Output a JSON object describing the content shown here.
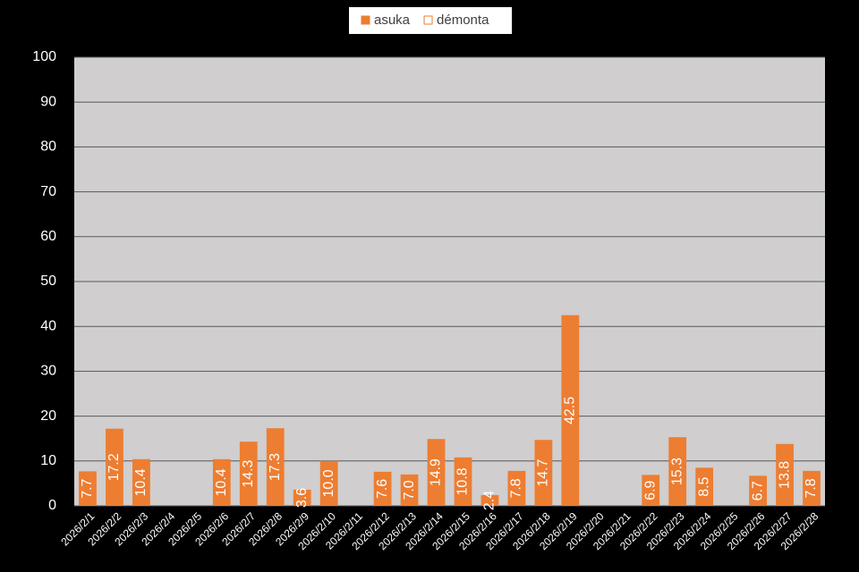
{
  "chart_data": {
    "type": "bar",
    "categories": [
      "2026/2/1",
      "2026/2/2",
      "2026/2/3",
      "2026/2/4",
      "2026/2/5",
      "2026/2/6",
      "2026/2/7",
      "2026/2/8",
      "2026/2/9",
      "2026/2/10",
      "2026/2/11",
      "2026/2/12",
      "2026/2/13",
      "2026/2/14",
      "2026/2/15",
      "2026/2/16",
      "2026/2/17",
      "2026/2/18",
      "2026/2/19",
      "2026/2/20",
      "2026/2/21",
      "2026/2/22",
      "2026/2/23",
      "2026/2/24",
      "2026/2/25",
      "2026/2/26",
      "2026/2/27",
      "2026/2/28"
    ],
    "series": [
      {
        "name": "asuka",
        "color": "#ed7d31",
        "fill": true,
        "values": [
          7.7,
          17.2,
          10.4,
          null,
          null,
          10.4,
          14.3,
          17.3,
          3.6,
          10.0,
          null,
          7.6,
          7.0,
          14.9,
          10.8,
          2.4,
          7.8,
          14.7,
          42.5,
          null,
          null,
          6.9,
          15.3,
          8.5,
          null,
          6.7,
          13.8,
          7.8
        ],
        "value_labels": [
          "7.7",
          "17.2",
          "10.4",
          null,
          null,
          "10.4",
          "14.3",
          "17.3",
          "3.6",
          "10.0",
          null,
          "7.6",
          "7.0",
          "14.9",
          "10.8",
          "2.4",
          "7.8",
          "14.7",
          "42.5",
          null,
          null,
          "6.9",
          "15.3",
          "8.5",
          null,
          "6.7",
          "13.8",
          "7.8"
        ]
      },
      {
        "name": "démonta",
        "color": "#ed7d31",
        "fill": false,
        "values": [
          null,
          null,
          null,
          null,
          null,
          null,
          null,
          null,
          null,
          null,
          null,
          null,
          null,
          null,
          null,
          null,
          null,
          null,
          null,
          null,
          null,
          null,
          null,
          null,
          null,
          null,
          null,
          null
        ]
      }
    ],
    "ylim": [
      0,
      100
    ],
    "yticks": [
      0,
      10,
      20,
      30,
      40,
      50,
      60,
      70,
      80,
      90,
      100
    ],
    "grid": true,
    "legend": "top"
  }
}
